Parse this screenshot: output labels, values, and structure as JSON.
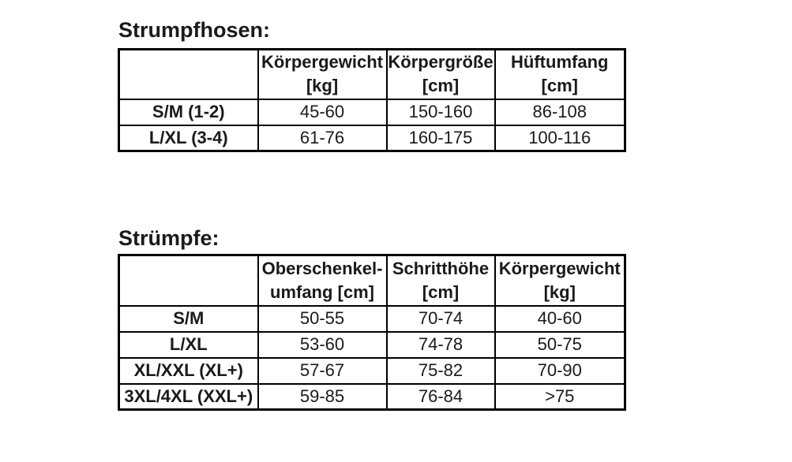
{
  "colors": {
    "background": "#ffffff",
    "text": "#1a1a1a",
    "table_border": "#000000"
  },
  "strumpfhosen": {
    "title": "Strumpfhosen:",
    "header": {
      "size": "",
      "koerpergewicht_l1": "Körpergewicht",
      "koerpergewicht_l2": "[kg]",
      "koerpergroesse_l1": "Körpergröße",
      "koerpergroesse_l2": "[cm]",
      "hueftumfang_l1": "Hüftumfang",
      "hueftumfang_l2": "[cm]"
    },
    "rows": [
      {
        "size": "S/M (1-2)",
        "koerpergewicht": "45-60",
        "koerpergroesse": "150-160",
        "hueftumfang": "86-108"
      },
      {
        "size": "L/XL (3-4)",
        "koerpergewicht": "61-76",
        "koerpergroesse": "160-175",
        "hueftumfang": "100-116"
      }
    ]
  },
  "struempfe": {
    "title": "Strümpfe:",
    "header": {
      "size": "",
      "oberschenkelumfang_l1": "Oberschenkel-",
      "oberschenkelumfang_l2": "umfang [cm]",
      "schritthoehe_l1": "Schritthöhe",
      "schritthoehe_l2": "[cm]",
      "koerpergewicht_l1": "Körpergewicht",
      "koerpergewicht_l2": "[kg]"
    },
    "rows": [
      {
        "size": "S/M",
        "oberschenkelumfang": "50-55",
        "schritthoehe": "70-74",
        "koerpergewicht": "40-60"
      },
      {
        "size": "L/XL",
        "oberschenkelumfang": "53-60",
        "schritthoehe": "74-78",
        "koerpergewicht": "50-75"
      },
      {
        "size": "XL/XXL (XL+)",
        "oberschenkelumfang": "57-67",
        "schritthoehe": "75-82",
        "koerpergewicht": "70-90"
      },
      {
        "size": "3XL/4XL (XXL+)",
        "oberschenkelumfang": "59-85",
        "schritthoehe": "76-84",
        "koerpergewicht": ">75"
      }
    ]
  }
}
